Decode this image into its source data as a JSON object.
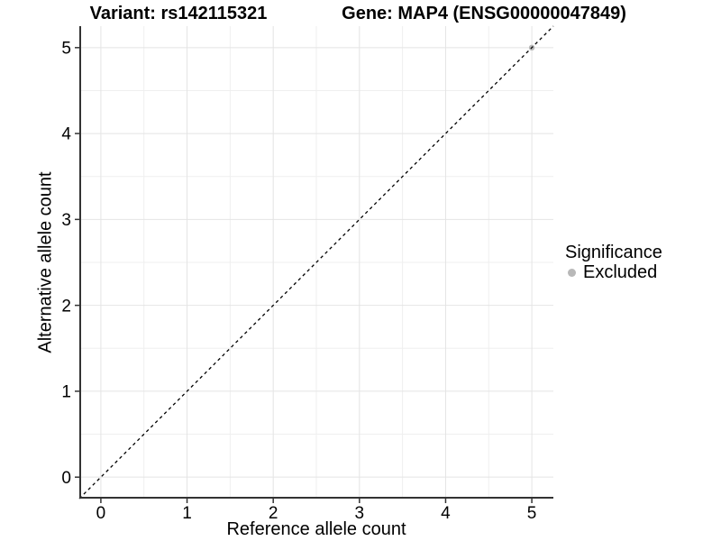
{
  "header": {
    "variant_title": "Variant: rs142115321",
    "gene_title": "Gene: MAP4 (ENSG00000047849)"
  },
  "chart_data": {
    "type": "scatter",
    "title": "Variant: rs142115321   Gene: MAP4 (ENSG00000047849)",
    "xlabel": "Reference allele count",
    "ylabel": "Alternative allele count",
    "xlim": [
      -0.25,
      5.25
    ],
    "ylim": [
      -0.25,
      5.25
    ],
    "x_ticks": [
      0,
      1,
      2,
      3,
      4,
      5
    ],
    "y_ticks": [
      0,
      1,
      2,
      3,
      4,
      5
    ],
    "x_minor_ticks": [
      0.5,
      1.5,
      2.5,
      3.5,
      4.5
    ],
    "y_minor_ticks": [
      0.5,
      1.5,
      2.5,
      3.5,
      4.5
    ],
    "grid": "on",
    "identity_line": {
      "slope": 1,
      "intercept": 0,
      "style": "dashed",
      "color": "#000000"
    },
    "series": [
      {
        "name": "Excluded",
        "color": "#b8b8b8",
        "points": [
          {
            "x": 5,
            "y": 5
          }
        ]
      }
    ],
    "legend": {
      "title": "Significance",
      "position": "right",
      "entries": [
        {
          "label": "Excluded",
          "color": "#b8b8b8"
        }
      ]
    },
    "style": {
      "background": "#ffffff",
      "grid_major": "#e4e4e4",
      "grid_minor": "#efefef",
      "axis_line": "#333333",
      "tick_color": "#333333",
      "point_radius": 3.2,
      "legend_key_color": "#b8b8b8"
    }
  }
}
